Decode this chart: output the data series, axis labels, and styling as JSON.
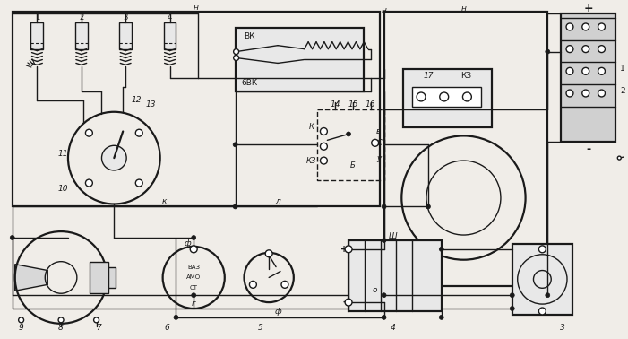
{
  "bg_color": "#f0ede8",
  "line_color": "#1a1a1a",
  "figsize": [
    7.01,
    3.78
  ],
  "dpi": 100,
  "labels": {
    "n": "н",
    "k": "к",
    "l": "л",
    "o": "о",
    "g": "г",
    "f": "ф",
    "v": "в",
    "u": "у",
    "VK": "ВК",
    "6VK": "6ВК",
    "KZ": "КЗ",
    "K": "К",
    "B": "Б",
    "C": "С",
    "H": "н",
    "VAZ": "ВАЗ",
    "AMO": "АМО",
    "ST": "СТ",
    "SH": "Ш",
    "plus": "+",
    "minus": "-",
    "n1": "1",
    "n2": "2",
    "n3": "3",
    "n4": "4",
    "n5": "5",
    "n6": "6",
    "n7": "7",
    "n8": "8",
    "n9": "9",
    "n10": "10",
    "n11": "11",
    "n12": "12",
    "n13": "13",
    "n14": "14",
    "n15": "15",
    "n16": "16",
    "n17": "17"
  }
}
